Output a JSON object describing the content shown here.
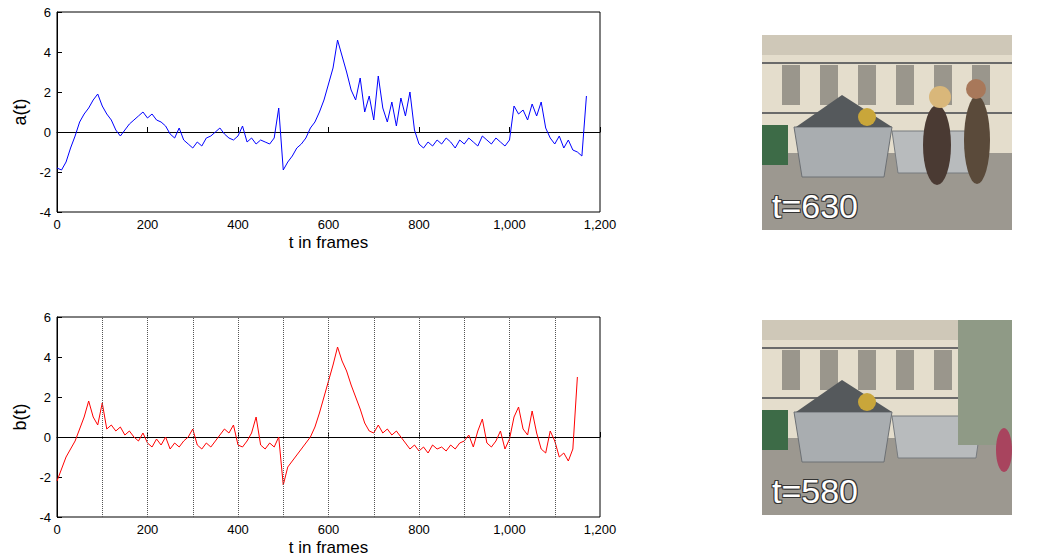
{
  "chart_data": [
    {
      "type": "line",
      "y_label": "a(t)",
      "x_label": "t in frames",
      "xlim": [
        0,
        1200
      ],
      "xticks": [
        0,
        200,
        400,
        600,
        800,
        1000,
        1200
      ],
      "ylim": [
        -4,
        6
      ],
      "yticks": [
        -4,
        -2,
        0,
        2,
        4,
        6
      ],
      "grid": false,
      "color": "#0000ff",
      "x": [
        0,
        10,
        20,
        30,
        40,
        50,
        60,
        70,
        80,
        90,
        100,
        110,
        120,
        130,
        140,
        150,
        160,
        170,
        180,
        190,
        200,
        210,
        220,
        230,
        240,
        250,
        260,
        270,
        280,
        290,
        300,
        310,
        320,
        330,
        340,
        350,
        360,
        370,
        380,
        390,
        400,
        410,
        420,
        430,
        440,
        450,
        460,
        470,
        480,
        490,
        500,
        510,
        520,
        530,
        540,
        550,
        560,
        570,
        580,
        590,
        600,
        610,
        620,
        630,
        640,
        650,
        660,
        670,
        680,
        690,
        700,
        710,
        720,
        730,
        740,
        750,
        760,
        770,
        780,
        790,
        800,
        810,
        820,
        830,
        840,
        850,
        860,
        870,
        880,
        890,
        900,
        910,
        920,
        930,
        940,
        950,
        960,
        970,
        980,
        990,
        1000,
        1010,
        1020,
        1030,
        1040,
        1050,
        1060,
        1070,
        1080,
        1090,
        1100,
        1110,
        1120,
        1130,
        1140,
        1150,
        1160,
        1170
      ],
      "values": [
        -1.8,
        -1.9,
        -1.5,
        -0.8,
        -0.2,
        0.5,
        0.9,
        1.2,
        1.6,
        1.9,
        1.3,
        0.9,
        0.6,
        0.1,
        -0.2,
        0.1,
        0.4,
        0.6,
        0.8,
        1.0,
        0.7,
        0.9,
        0.6,
        0.5,
        0.3,
        -0.1,
        -0.3,
        0.2,
        -0.4,
        -0.6,
        -0.8,
        -0.5,
        -0.7,
        -0.3,
        -0.2,
        0.0,
        0.2,
        -0.1,
        -0.3,
        -0.4,
        -0.2,
        0.3,
        -0.5,
        -0.3,
        -0.6,
        -0.4,
        -0.5,
        -0.6,
        -0.3,
        1.2,
        -1.9,
        -1.5,
        -1.2,
        -0.8,
        -0.6,
        -0.3,
        0.2,
        0.5,
        1.0,
        1.6,
        2.4,
        3.2,
        4.6,
        3.8,
        3.0,
        2.1,
        1.6,
        2.7,
        1.0,
        1.8,
        0.6,
        2.8,
        1.2,
        0.5,
        1.5,
        0.3,
        1.7,
        0.8,
        2.0,
        0.1,
        -0.6,
        -0.8,
        -0.5,
        -0.7,
        -0.4,
        -0.6,
        -0.3,
        -0.5,
        -0.8,
        -0.4,
        -0.6,
        -0.3,
        -0.5,
        -0.7,
        -0.2,
        -0.4,
        -0.6,
        -0.3,
        -0.5,
        -0.7,
        -0.4,
        1.3,
        0.9,
        1.1,
        0.6,
        1.4,
        0.8,
        1.5,
        0.2,
        -0.3,
        -0.6,
        -0.2,
        -0.8,
        -0.4,
        -0.9,
        -1.0,
        -1.2,
        1.8
      ]
    },
    {
      "type": "line",
      "y_label": "b(t)",
      "x_label": "t in frames",
      "xlim": [
        0,
        1200
      ],
      "xticks": [
        0,
        200,
        400,
        600,
        800,
        1000,
        1200
      ],
      "ylim": [
        -4,
        6
      ],
      "yticks": [
        -4,
        -2,
        0,
        2,
        4,
        6
      ],
      "grid": false,
      "color": "#ff0000",
      "vlines": [
        100,
        200,
        300,
        400,
        500,
        600,
        700,
        800,
        900,
        1000,
        1100
      ],
      "x": [
        0,
        10,
        20,
        30,
        40,
        50,
        60,
        70,
        80,
        90,
        100,
        110,
        120,
        130,
        140,
        150,
        160,
        170,
        180,
        190,
        200,
        210,
        220,
        230,
        240,
        250,
        260,
        270,
        280,
        290,
        300,
        310,
        320,
        330,
        340,
        350,
        360,
        370,
        380,
        390,
        400,
        410,
        420,
        430,
        440,
        450,
        460,
        470,
        480,
        490,
        500,
        510,
        520,
        530,
        540,
        550,
        560,
        570,
        580,
        590,
        600,
        610,
        620,
        630,
        640,
        650,
        660,
        670,
        680,
        690,
        700,
        710,
        720,
        730,
        740,
        750,
        760,
        770,
        780,
        790,
        800,
        810,
        820,
        830,
        840,
        850,
        860,
        870,
        880,
        890,
        900,
        910,
        920,
        930,
        940,
        950,
        960,
        970,
        980,
        990,
        1000,
        1010,
        1020,
        1030,
        1040,
        1050,
        1060,
        1070,
        1080,
        1090,
        1100,
        1110,
        1120,
        1130,
        1140,
        1150
      ],
      "values": [
        -2.2,
        -1.6,
        -1.0,
        -0.6,
        -0.2,
        0.4,
        1.0,
        1.8,
        1.0,
        0.6,
        1.7,
        0.4,
        0.6,
        0.3,
        0.5,
        0.1,
        0.3,
        0.0,
        -0.2,
        0.2,
        -0.3,
        -0.5,
        -0.1,
        -0.4,
        0.0,
        -0.6,
        -0.3,
        -0.5,
        -0.2,
        0.0,
        0.4,
        -0.4,
        -0.6,
        -0.3,
        -0.5,
        -0.2,
        0.1,
        0.4,
        0.2,
        0.6,
        -0.4,
        -0.5,
        -0.2,
        0.2,
        1.0,
        -0.4,
        -0.6,
        -0.3,
        -0.5,
        0.0,
        -2.4,
        -1.5,
        -1.2,
        -0.9,
        -0.6,
        -0.3,
        0.0,
        0.5,
        1.2,
        2.0,
        2.8,
        3.6,
        4.5,
        3.8,
        3.3,
        2.6,
        2.0,
        1.4,
        0.7,
        0.3,
        0.2,
        0.6,
        0.2,
        0.4,
        0.1,
        0.3,
        0.0,
        -0.3,
        -0.6,
        -0.4,
        -0.7,
        -0.5,
        -0.8,
        -0.4,
        -0.6,
        -0.5,
        -0.7,
        -0.4,
        -0.6,
        -0.3,
        -0.2,
        0.1,
        -0.5,
        0.3,
        0.9,
        -0.3,
        -0.5,
        -0.2,
        0.3,
        -0.6,
        -0.1,
        1.0,
        1.5,
        0.4,
        0.1,
        1.3,
        0.2,
        -0.6,
        -0.8,
        0.3,
        -0.2,
        -1.0,
        -0.8,
        -1.2,
        -0.6,
        3.0
      ]
    }
  ],
  "images": [
    {
      "label": "t=630"
    },
    {
      "label": "t=580"
    }
  ]
}
